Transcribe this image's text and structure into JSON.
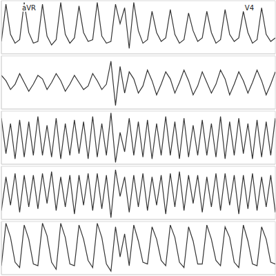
{
  "chart_data": [
    {
      "type": "line",
      "color": "#333333",
      "grid": true,
      "tick_labels": false,
      "annotations": [
        "aVR",
        "V4"
      ],
      "xlim": [
        0,
        60
      ],
      "xticks": [
        0,
        4,
        8,
        12,
        16,
        20,
        24,
        28,
        32,
        36,
        40,
        44,
        48,
        52,
        56,
        60
      ],
      "ylim": [
        -1.5,
        1.5
      ],
      "yticks": [
        -1.5,
        -1,
        -0.5,
        0,
        0.5,
        1,
        1.5
      ],
      "values": [
        -0.8,
        1.3,
        -0.4,
        -0.9,
        -0.7,
        1.4,
        -0.3,
        -0.9,
        -0.8,
        1.3,
        -0.5,
        -1.0,
        -0.7,
        1.4,
        -0.4,
        -0.9,
        -0.6,
        1.2,
        -0.3,
        -0.8,
        -0.7,
        1.4,
        -0.5,
        -0.9,
        -0.8,
        1.3,
        0.2,
        1.1,
        -1.2,
        1.4,
        -0.2,
        -0.9,
        -0.7,
        0.9,
        -0.3,
        -0.8,
        -0.6,
        1.0,
        -0.4,
        -0.9,
        -0.7,
        0.8,
        -0.2,
        -0.8,
        -0.6,
        0.9,
        -0.3,
        -0.9,
        -0.7,
        1.0,
        -0.4,
        -0.8,
        -0.6,
        0.9,
        -0.3,
        -0.9,
        -0.7,
        1.1,
        -0.4,
        -0.8,
        -0.6
      ]
    },
    {
      "type": "line",
      "color": "#333333",
      "grid": true,
      "tick_labels": false,
      "xlim": [
        0,
        60
      ],
      "xticks": [
        0,
        4,
        8,
        12,
        16,
        20,
        24,
        28,
        32,
        36,
        40,
        44,
        48,
        52,
        56,
        60
      ],
      "ylim": [
        -1.5,
        1.5
      ],
      "yticks": [
        -1.5,
        -1,
        -0.5,
        0,
        0.5,
        1,
        1.5
      ],
      "values": [
        0.4,
        0.1,
        -0.4,
        -0.1,
        0.5,
        0.0,
        -0.5,
        -0.1,
        0.4,
        0.2,
        -0.4,
        0.0,
        0.5,
        0.1,
        -0.5,
        -0.1,
        0.4,
        0.0,
        -0.4,
        -0.2,
        0.5,
        0.1,
        -0.4,
        -0.1,
        1.2,
        -1.3,
        0.9,
        -0.6,
        0.6,
        0.2,
        -0.6,
        -0.2,
        0.7,
        0.1,
        -0.7,
        -0.1,
        0.6,
        0.2,
        -0.6,
        0.0,
        0.7,
        0.1,
        -0.7,
        -0.2,
        0.6,
        0.0,
        -0.6,
        -0.1,
        0.7,
        0.2,
        -0.7,
        -0.1,
        0.6,
        0.1,
        -0.6,
        0.0,
        0.7,
        0.1,
        -0.7,
        -0.1,
        0.6
      ]
    },
    {
      "type": "line",
      "color": "#333333",
      "grid": true,
      "tick_labels": false,
      "xlim": [
        0,
        60
      ],
      "xticks": [
        0,
        4,
        8,
        12,
        16,
        20,
        24,
        28,
        32,
        36,
        40,
        44,
        48,
        52,
        56,
        60
      ],
      "ylim": [
        -1.5,
        1.5
      ],
      "yticks": [
        -1.5,
        -1,
        -0.5,
        0,
        0.5,
        1,
        1.5
      ],
      "values": [
        1.1,
        -0.9,
        0.8,
        -1.2,
        1.0,
        -1.1,
        0.9,
        -1.0,
        1.2,
        -1.0,
        0.7,
        -1.1,
        1.1,
        -1.2,
        0.8,
        -1.0,
        1.0,
        -0.9,
        0.9,
        -1.2,
        1.2,
        -1.1,
        0.8,
        -1.0,
        1.4,
        -1.4,
        0.3,
        -0.8,
        1.1,
        -1.0,
        0.9,
        -1.1,
        1.0,
        -1.2,
        0.8,
        -1.0,
        1.2,
        -1.0,
        0.9,
        -1.2,
        1.1,
        -1.1,
        0.7,
        -1.0,
        1.0,
        -1.0,
        0.8,
        -1.1,
        1.2,
        -1.2,
        0.9,
        -1.0,
        1.1,
        -0.9,
        0.8,
        -1.2,
        1.0,
        -1.1,
        0.9,
        -1.0,
        1.1
      ]
    },
    {
      "type": "line",
      "color": "#333333",
      "grid": true,
      "tick_labels": false,
      "xlim": [
        0,
        60
      ],
      "xticks": [
        0,
        4,
        8,
        12,
        16,
        20,
        24,
        28,
        32,
        36,
        40,
        44,
        48,
        52,
        56,
        60
      ],
      "ylim": [
        -1.5,
        1.5
      ],
      "yticks": [
        -1.5,
        -1,
        -0.5,
        0,
        0.5,
        1,
        1.5
      ],
      "values": [
        -1.0,
        0.9,
        -0.7,
        1.1,
        -1.1,
        1.0,
        -0.8,
        1.0,
        -0.9,
        1.1,
        -0.6,
        1.2,
        -1.0,
        0.9,
        -0.8,
        1.0,
        -1.2,
        1.0,
        -0.7,
        1.1,
        -1.0,
        1.1,
        -0.9,
        1.0,
        -1.4,
        1.3,
        -0.2,
        0.9,
        -1.1,
        1.0,
        -0.8,
        1.1,
        -1.0,
        0.9,
        -0.7,
        1.0,
        -1.2,
        1.1,
        -0.8,
        1.2,
        -1.0,
        1.0,
        -0.6,
        1.0,
        -1.1,
        0.9,
        -0.8,
        1.1,
        -1.0,
        1.1,
        -0.7,
        1.0,
        -1.2,
        1.0,
        -0.9,
        1.1,
        -1.0,
        0.9,
        -0.8,
        1.0,
        -1.1
      ]
    },
    {
      "type": "line",
      "color": "#333333",
      "grid": true,
      "tick_labels": false,
      "xlim": [
        0,
        60
      ],
      "xticks": [
        0,
        4,
        8,
        12,
        16,
        20,
        24,
        28,
        32,
        36,
        40,
        44,
        48,
        52,
        56,
        60
      ],
      "ylim": [
        -1.5,
        1.5
      ],
      "yticks": [
        -1.5,
        -1,
        -0.5,
        0,
        0.5,
        1,
        1.5
      ],
      "values": [
        -1.0,
        1.4,
        0.6,
        -0.8,
        -1.1,
        1.3,
        0.5,
        -0.9,
        -1.0,
        1.4,
        0.7,
        -0.8,
        -1.2,
        1.4,
        0.6,
        -0.9,
        -1.0,
        1.3,
        0.5,
        -0.7,
        -1.1,
        1.4,
        0.6,
        -0.9,
        -1.3,
        1.2,
        -0.5,
        0.8,
        -1.0,
        1.3,
        0.4,
        -0.8,
        -0.9,
        1.2,
        0.5,
        -0.7,
        -1.0,
        1.3,
        0.6,
        -0.8,
        -1.1,
        1.2,
        0.4,
        -0.9,
        -0.9,
        1.3,
        0.5,
        -0.7,
        -1.0,
        1.2,
        0.6,
        -0.8,
        -1.1,
        1.3,
        0.4,
        -0.9,
        -1.0,
        1.2,
        0.5,
        -0.8,
        -0.9
      ]
    }
  ]
}
